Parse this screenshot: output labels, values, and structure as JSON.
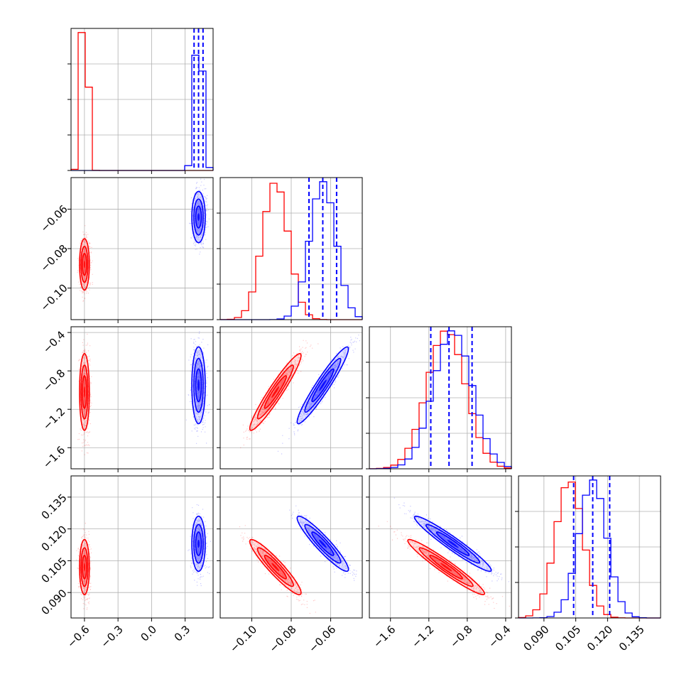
{
  "chart_data": {
    "type": "corner",
    "title": "",
    "grid": true,
    "series_colors": {
      "red": "#ff0000",
      "blue": "#0000ff"
    },
    "params": [
      {
        "range": [
          -0.72,
          0.55
        ],
        "ticks": [
          -0.6,
          -0.3,
          0.0,
          0.3
        ],
        "tick_labels": [
          "−0.6",
          "−0.3",
          "0.0",
          "0.3"
        ]
      },
      {
        "range": [
          -0.116,
          -0.044
        ],
        "ticks": [
          -0.1,
          -0.08,
          -0.06
        ],
        "tick_labels": [
          "−0.10",
          "−0.08",
          "−0.06"
        ]
      },
      {
        "range": [
          -1.82,
          -0.34
        ],
        "ticks": [
          -1.6,
          -1.2,
          -0.8,
          -0.4
        ],
        "tick_labels": [
          "−1.6",
          "−1.2",
          "−0.8",
          "−0.4"
        ]
      },
      {
        "range": [
          0.078,
          0.145
        ],
        "ticks": [
          0.09,
          0.105,
          0.12,
          0.135
        ],
        "tick_labels": [
          "0.090",
          "0.105",
          "0.120",
          "0.135"
        ]
      }
    ],
    "series": [
      {
        "color": "#ff0000",
        "mean": [
          -0.6,
          -0.088,
          -1.02,
          0.102
        ],
        "std": [
          0.022,
          0.0065,
          0.2,
          0.0065
        ],
        "corr": [
          [
            1,
            0,
            0,
            0
          ],
          [
            0,
            1,
            0.95,
            -0.93
          ],
          [
            0,
            0.95,
            1,
            -0.96
          ],
          [
            0,
            -0.93,
            -0.96,
            1
          ]
        ]
      },
      {
        "color": "#0000ff",
        "mean": [
          0.42,
          -0.064,
          -0.95,
          0.113
        ],
        "std": [
          0.03,
          0.0065,
          0.2,
          0.0065
        ],
        "corr": [
          [
            1,
            0,
            0,
            0
          ],
          [
            0,
            1,
            0.95,
            -0.93
          ],
          [
            0,
            0.95,
            1,
            -0.96
          ],
          [
            0,
            -0.93,
            -0.96,
            1
          ]
        ]
      }
    ],
    "quantile_lines": {
      "color": "#0000ff",
      "style": "dashed",
      "values": [
        [
          0.38,
          0.42,
          0.46
        ],
        [
          -0.071,
          -0.064,
          -0.057
        ],
        [
          -1.18,
          -0.99,
          -0.75
        ],
        [
          0.104,
          0.113,
          0.121
        ]
      ]
    }
  }
}
